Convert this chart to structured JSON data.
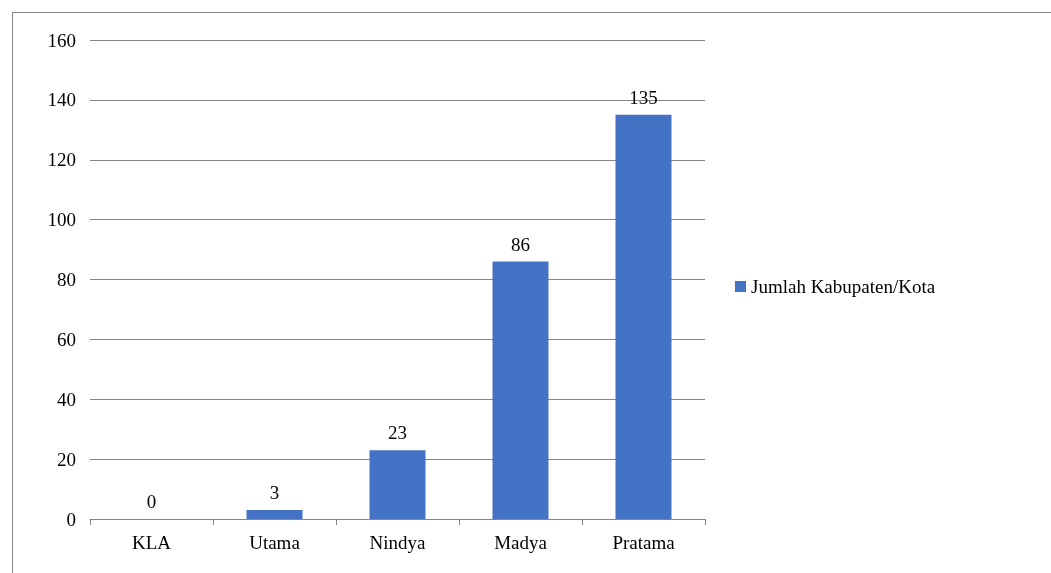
{
  "chart_data": {
    "type": "bar",
    "categories": [
      "KLA",
      "Utama",
      "Nindya",
      "Madya",
      "Pratama"
    ],
    "series": [
      {
        "name": "Jumlah Kabupaten/Kota",
        "color": "#4472c4",
        "values": [
          0,
          3,
          23,
          86,
          135
        ]
      }
    ],
    "ylim": [
      0,
      160
    ],
    "yticks": [
      0,
      20,
      40,
      60,
      80,
      100,
      120,
      140,
      160
    ],
    "grid": "y",
    "legend": "right",
    "data_labels": true
  }
}
